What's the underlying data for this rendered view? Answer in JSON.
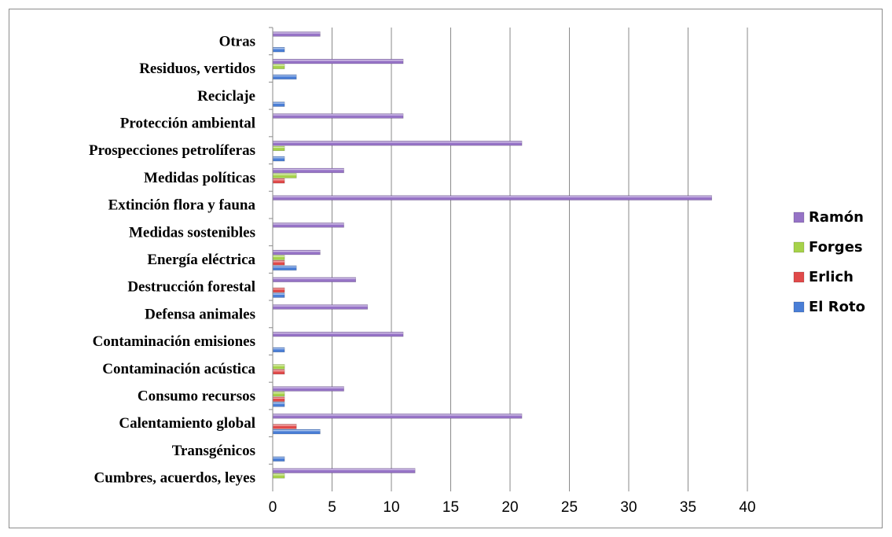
{
  "chart_data": {
    "type": "bar",
    "orientation": "horizontal",
    "title": "",
    "xlabel": "",
    "ylabel": "",
    "xlim": [
      0,
      40
    ],
    "x_ticks": [
      0,
      5,
      10,
      15,
      20,
      25,
      30,
      35,
      40
    ],
    "grid": "vertical",
    "legend_position": "right",
    "categories": [
      "Cumbres, acuerdos, leyes",
      "Transgénicos",
      "Calentamiento global",
      "Consumo recursos",
      "Contaminación acústica",
      "Contaminación emisiones",
      "Defensa animales",
      "Destrucción forestal",
      "Energía eléctrica",
      "Medidas sostenibles",
      "Extinción flora y fauna",
      "Medidas políticas",
      "Prospecciones petrolíferas",
      "Protección ambiental",
      "Reciclaje",
      "Residuos, vertidos",
      "Otras"
    ],
    "series": [
      {
        "name": "El Roto",
        "color": "#4a7ed6",
        "values": [
          0,
          1,
          4,
          1,
          0,
          1,
          0,
          1,
          2,
          0,
          0,
          0,
          1,
          0,
          1,
          2,
          1
        ]
      },
      {
        "name": "Erlich",
        "color": "#e04a4a",
        "values": [
          0,
          0,
          2,
          1,
          1,
          0,
          0,
          1,
          1,
          0,
          0,
          1,
          0,
          0,
          0,
          0,
          0
        ]
      },
      {
        "name": "Forges",
        "color": "#a6d24a",
        "values": [
          1,
          0,
          0,
          1,
          1,
          0,
          0,
          0,
          1,
          0,
          0,
          2,
          1,
          0,
          0,
          1,
          0
        ]
      },
      {
        "name": "Ramón",
        "color": "#9673c6",
        "values": [
          12,
          0,
          21,
          6,
          0,
          11,
          8,
          7,
          4,
          6,
          37,
          6,
          21,
          11,
          0,
          11,
          4
        ]
      }
    ]
  }
}
